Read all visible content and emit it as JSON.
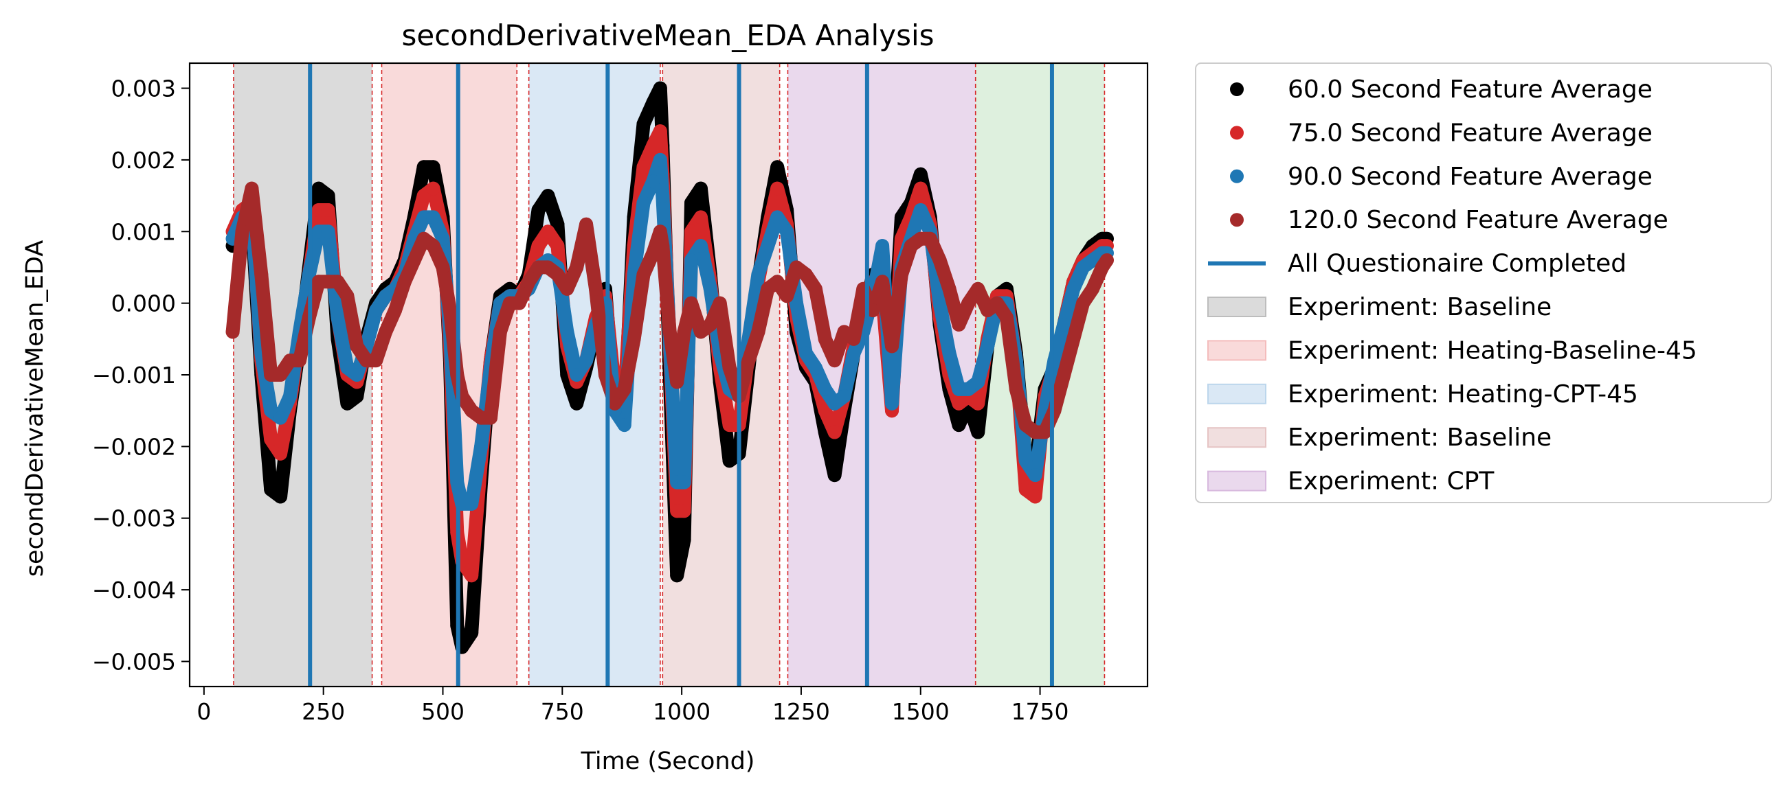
{
  "chart_data": {
    "type": "scatter",
    "title": "secondDerivativeMean_EDA Analysis",
    "xlabel": "Time (Second)",
    "ylabel": "secondDerivativeMean_EDA",
    "xlim": [
      -30,
      1975
    ],
    "ylim": [
      -0.00535,
      0.00335
    ],
    "xticks": [
      0,
      250,
      500,
      750,
      1000,
      1250,
      1500,
      1750
    ],
    "xtick_labels": [
      "0",
      "250",
      "500",
      "750",
      "1000",
      "1250",
      "1500",
      "1750"
    ],
    "yticks": [
      0.003,
      0.002,
      0.001,
      0.0,
      -0.001,
      -0.002,
      -0.003,
      -0.004,
      -0.005
    ],
    "ytick_labels": [
      "0.003",
      "0.002",
      "0.001",
      "0.000",
      "−0.001",
      "−0.002",
      "−0.003",
      "−0.004",
      "−0.005"
    ],
    "grid": false,
    "legend_position": "outside-right",
    "regions": [
      {
        "label": "Experiment: Baseline",
        "start": 62,
        "end": 352,
        "color": "#bdbdbd"
      },
      {
        "label": "Experiment: Heating-Baseline-45",
        "start": 372,
        "end": 655,
        "color": "#f4bcbc"
      },
      {
        "label": "Experiment: Heating-CPT-45",
        "start": 680,
        "end": 955,
        "color": "#bcd6ec"
      },
      {
        "label": "Experiment: Baseline",
        "start": 960,
        "end": 1205,
        "color": "#e6c4c4"
      },
      {
        "label": "Experiment: CPT",
        "start": 1222,
        "end": 1615,
        "color": "#d8b9de"
      },
      {
        "label": "",
        "start": 1615,
        "end": 1885,
        "color": "#c2e3c2"
      }
    ],
    "dashed_lines": [
      62,
      352,
      372,
      655,
      680,
      955,
      960,
      1205,
      1222,
      1615,
      1885
    ],
    "questionnaire_lines": [
      222,
      532,
      845,
      1120,
      1388,
      1775
    ],
    "questionnaire_label": "All Questionaire Completed",
    "series": [
      {
        "name": "60.0 Second Feature Average",
        "color": "#000000",
        "x": [
          60,
          80,
          100,
          120,
          140,
          160,
          180,
          200,
          220,
          240,
          260,
          280,
          300,
          320,
          340,
          360,
          380,
          400,
          420,
          440,
          460,
          480,
          500,
          515,
          530,
          540,
          560,
          580,
          600,
          620,
          640,
          660,
          680,
          700,
          720,
          740,
          760,
          780,
          800,
          820,
          840,
          860,
          880,
          900,
          920,
          940,
          955,
          960,
          975,
          990,
          1005,
          1020,
          1040,
          1060,
          1080,
          1100,
          1120,
          1140,
          1160,
          1180,
          1200,
          1220,
          1240,
          1260,
          1280,
          1300,
          1320,
          1340,
          1360,
          1380,
          1400,
          1420,
          1440,
          1460,
          1480,
          1500,
          1520,
          1540,
          1560,
          1580,
          1600,
          1620,
          1640,
          1660,
          1680,
          1700,
          1720,
          1740,
          1760,
          1780,
          1800,
          1820,
          1840,
          1860,
          1880,
          1890
        ],
        "y": [
          0.0008,
          0.0012,
          0.0012,
          -0.001,
          -0.0026,
          -0.0027,
          -0.0015,
          -0.0006,
          0.0005,
          0.0016,
          0.0015,
          -0.0005,
          -0.0014,
          -0.0013,
          -0.0005,
          0.0,
          0.0002,
          0.0003,
          0.0006,
          0.0012,
          0.0019,
          0.0019,
          0.0012,
          -0.0008,
          -0.0045,
          -0.0048,
          -0.0046,
          -0.0025,
          -0.0008,
          0.0001,
          0.0002,
          0.0001,
          0.0004,
          0.0013,
          0.0015,
          0.0011,
          -0.001,
          -0.0014,
          -0.0009,
          -0.0003,
          0.0002,
          -0.0015,
          -0.0016,
          0.0012,
          0.0025,
          0.0028,
          0.003,
          0.0022,
          -0.001,
          -0.0038,
          -0.0033,
          0.0014,
          0.0016,
          0.0004,
          -0.0011,
          -0.0022,
          -0.0021,
          -0.0009,
          0.0003,
          0.0012,
          0.0019,
          0.0013,
          -0.0004,
          -0.0009,
          -0.0011,
          -0.0018,
          -0.0024,
          -0.0015,
          -0.0007,
          -0.0003,
          0.0004,
          0.0002,
          -0.001,
          0.0012,
          0.0014,
          0.0018,
          0.0012,
          -0.0003,
          -0.0012,
          -0.0017,
          -0.0014,
          -0.0018,
          -0.0006,
          0.0001,
          0.0002,
          -0.0007,
          -0.0022,
          -0.0023,
          -0.0012,
          -0.0009,
          -0.0003,
          0.0003,
          0.0006,
          0.0008,
          0.0009,
          0.0009
        ]
      },
      {
        "name": "75.0 Second Feature Average",
        "color": "#d62728",
        "x": [
          60,
          80,
          100,
          120,
          140,
          160,
          180,
          200,
          220,
          240,
          260,
          280,
          300,
          320,
          340,
          360,
          380,
          400,
          420,
          440,
          460,
          480,
          500,
          515,
          530,
          540,
          560,
          580,
          600,
          620,
          640,
          660,
          680,
          700,
          720,
          740,
          760,
          780,
          800,
          820,
          840,
          860,
          880,
          900,
          920,
          940,
          955,
          960,
          975,
          990,
          1005,
          1020,
          1040,
          1060,
          1080,
          1100,
          1120,
          1140,
          1160,
          1180,
          1200,
          1220,
          1240,
          1260,
          1280,
          1300,
          1320,
          1340,
          1360,
          1380,
          1400,
          1420,
          1440,
          1460,
          1480,
          1500,
          1520,
          1540,
          1560,
          1580,
          1600,
          1620,
          1640,
          1660,
          1680,
          1700,
          1720,
          1740,
          1760,
          1780,
          1800,
          1820,
          1840,
          1860,
          1880,
          1890
        ],
        "y": [
          0.001,
          0.0013,
          0.0014,
          -0.0008,
          -0.0019,
          -0.0021,
          -0.0014,
          -0.0005,
          0.0004,
          0.0013,
          0.0013,
          -0.0002,
          -0.001,
          -0.0011,
          -0.0006,
          -0.0001,
          0.0001,
          0.0002,
          0.0005,
          0.001,
          0.0015,
          0.0016,
          0.001,
          -0.0006,
          -0.0032,
          -0.0036,
          -0.0038,
          -0.0022,
          -0.0008,
          0.0,
          0.0001,
          0.0001,
          0.0003,
          0.0008,
          0.001,
          0.0008,
          -0.0006,
          -0.0011,
          -0.0008,
          -0.0002,
          0.0001,
          -0.0012,
          -0.0013,
          0.0008,
          0.0019,
          0.0022,
          0.0024,
          0.0018,
          -0.0006,
          -0.0029,
          -0.0029,
          0.001,
          0.0012,
          0.0003,
          -0.0009,
          -0.0017,
          -0.0017,
          -0.0007,
          0.0003,
          0.001,
          0.0016,
          0.0011,
          -0.0002,
          -0.0008,
          -0.001,
          -0.0015,
          -0.0018,
          -0.0013,
          -0.0006,
          -0.0003,
          0.0003,
          0.0001,
          -0.0015,
          0.0009,
          0.0012,
          0.0016,
          0.0011,
          -0.0002,
          -0.001,
          -0.0014,
          -0.0013,
          -0.0014,
          -0.0005,
          0.0001,
          0.0001,
          -0.0008,
          -0.0026,
          -0.0027,
          -0.0013,
          -0.0009,
          -0.0003,
          0.0003,
          0.0006,
          0.0007,
          0.0008,
          0.0008
        ]
      },
      {
        "name": "90.0 Second Feature Average",
        "color": "#1f77b4",
        "x": [
          60,
          80,
          100,
          120,
          140,
          160,
          180,
          200,
          220,
          240,
          260,
          280,
          300,
          320,
          340,
          360,
          380,
          400,
          420,
          440,
          460,
          480,
          500,
          515,
          530,
          540,
          560,
          580,
          600,
          620,
          640,
          660,
          680,
          700,
          720,
          740,
          760,
          780,
          800,
          820,
          840,
          860,
          880,
          900,
          920,
          940,
          955,
          960,
          975,
          990,
          1005,
          1020,
          1040,
          1060,
          1080,
          1100,
          1120,
          1140,
          1160,
          1180,
          1200,
          1220,
          1240,
          1260,
          1280,
          1300,
          1320,
          1340,
          1360,
          1380,
          1400,
          1420,
          1440,
          1460,
          1480,
          1500,
          1520,
          1540,
          1560,
          1580,
          1600,
          1620,
          1640,
          1660,
          1680,
          1700,
          1720,
          1740,
          1760,
          1780,
          1800,
          1820,
          1840,
          1860,
          1880,
          1890
        ],
        "y": [
          0.0009,
          0.0012,
          0.0013,
          -0.0007,
          -0.0015,
          -0.0016,
          -0.0013,
          -0.0004,
          0.0004,
          0.001,
          0.001,
          -0.0002,
          -0.0009,
          -0.001,
          -0.0006,
          -0.0001,
          0.0001,
          0.0002,
          0.0004,
          0.0009,
          0.0012,
          0.0012,
          0.0009,
          -0.0004,
          -0.0025,
          -0.0028,
          -0.0028,
          -0.002,
          -0.0009,
          0.0,
          0.0001,
          0.0001,
          0.0002,
          0.0005,
          0.0006,
          0.0005,
          -0.0004,
          -0.001,
          -0.0008,
          -0.0003,
          0.0,
          -0.0015,
          -0.0017,
          0.0004,
          0.0014,
          0.0017,
          0.002,
          0.0015,
          -0.0005,
          -0.0025,
          -0.0025,
          0.0006,
          0.0008,
          0.0002,
          -0.0007,
          -0.0012,
          -0.0013,
          -0.0005,
          0.0004,
          0.0008,
          0.0012,
          0.001,
          0.0,
          -0.0007,
          -0.0009,
          -0.0012,
          -0.0014,
          -0.0013,
          -0.0007,
          -0.0004,
          0.0001,
          0.0008,
          -0.0014,
          0.0005,
          0.0009,
          0.0013,
          0.001,
          0.0,
          -0.0007,
          -0.0012,
          -0.0012,
          -0.0011,
          -0.0006,
          0.0,
          0.0,
          -0.0008,
          -0.0022,
          -0.0024,
          -0.0015,
          -0.0008,
          -0.0003,
          0.0002,
          0.0005,
          0.0006,
          0.0007,
          0.0007
        ]
      },
      {
        "name": "120.0 Second Feature Average",
        "color": "#a52a2a",
        "x": [
          60,
          80,
          100,
          120,
          140,
          160,
          180,
          200,
          220,
          240,
          260,
          280,
          300,
          320,
          340,
          360,
          380,
          400,
          420,
          440,
          460,
          480,
          500,
          515,
          530,
          540,
          560,
          580,
          600,
          620,
          640,
          660,
          680,
          700,
          720,
          740,
          760,
          780,
          800,
          820,
          840,
          860,
          880,
          900,
          920,
          940,
          955,
          960,
          975,
          990,
          1005,
          1020,
          1040,
          1060,
          1080,
          1100,
          1120,
          1140,
          1160,
          1180,
          1200,
          1220,
          1240,
          1260,
          1280,
          1300,
          1320,
          1340,
          1360,
          1380,
          1400,
          1420,
          1440,
          1460,
          1480,
          1500,
          1520,
          1540,
          1560,
          1580,
          1600,
          1620,
          1640,
          1660,
          1680,
          1700,
          1720,
          1740,
          1760,
          1780,
          1800,
          1820,
          1840,
          1860,
          1880,
          1890
        ],
        "y": [
          -0.0004,
          0.001,
          0.0016,
          0.0004,
          -0.001,
          -0.001,
          -0.0008,
          -0.0008,
          -0.0002,
          0.0003,
          0.0003,
          0.0003,
          0.0001,
          -0.0006,
          -0.0008,
          -0.0008,
          -0.0004,
          -0.0001,
          0.0003,
          0.0006,
          0.0009,
          0.0008,
          0.0005,
          -0.0001,
          -0.001,
          -0.0013,
          -0.0015,
          -0.0016,
          -0.0016,
          -0.0004,
          0.0,
          0.0,
          0.0003,
          0.0005,
          0.0005,
          0.0004,
          0.0002,
          0.0005,
          0.0011,
          0.0002,
          -0.001,
          -0.0014,
          -0.0012,
          -0.0005,
          0.0004,
          0.0007,
          0.001,
          0.0008,
          -0.0004,
          -0.0011,
          -0.0004,
          0.0,
          -0.0004,
          -0.0003,
          0.0,
          -0.0009,
          -0.0013,
          -0.0008,
          -0.0004,
          0.0002,
          0.0003,
          0.0001,
          0.0005,
          0.0004,
          0.0002,
          -0.0005,
          -0.0008,
          -0.0004,
          -0.0005,
          0.0002,
          -0.0001,
          0.0003,
          -0.0006,
          0.0004,
          0.0008,
          0.0009,
          0.0009,
          0.0006,
          0.0002,
          -0.0003,
          0.0,
          0.0002,
          -0.0001,
          0.0,
          -0.0002,
          -0.0012,
          -0.0017,
          -0.0018,
          -0.0018,
          -0.0015,
          -0.001,
          -0.0005,
          0.0,
          0.0002,
          0.0005,
          0.0006
        ]
      }
    ],
    "legend": [
      {
        "kind": "marker",
        "label": "60.0 Second Feature Average",
        "color": "#000000"
      },
      {
        "kind": "marker",
        "label": "75.0 Second Feature Average",
        "color": "#d62728"
      },
      {
        "kind": "marker",
        "label": "90.0 Second Feature Average",
        "color": "#1f77b4"
      },
      {
        "kind": "marker",
        "label": "120.0 Second Feature Average",
        "color": "#a52a2a"
      },
      {
        "kind": "line",
        "label": "All Questionaire Completed",
        "color": "#1f77b4"
      },
      {
        "kind": "patch",
        "label": "Experiment: Baseline",
        "color": "#bdbdbd"
      },
      {
        "kind": "patch",
        "label": "Experiment: Heating-Baseline-45",
        "color": "#f4bcbc"
      },
      {
        "kind": "patch",
        "label": "Experiment: Heating-CPT-45",
        "color": "#bcd6ec"
      },
      {
        "kind": "patch",
        "label": "Experiment: Baseline",
        "color": "#e6c4c4"
      },
      {
        "kind": "patch",
        "label": "Experiment: CPT",
        "color": "#d8b9de"
      }
    ]
  }
}
